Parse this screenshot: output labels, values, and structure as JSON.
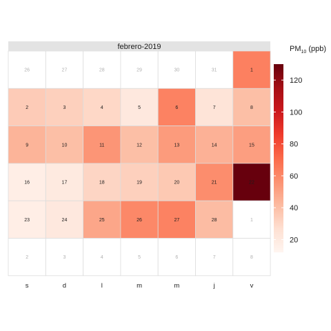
{
  "chart_data": {
    "type": "heatmap",
    "panel_title": "febrero-2019",
    "weekday_labels": [
      "s",
      "d",
      "l",
      "m",
      "m",
      "j",
      "v"
    ],
    "legend": {
      "title_main": "PM",
      "title_sub": "10",
      "title_unit": " (ppb)",
      "ticks": [
        20,
        40,
        60,
        80,
        100,
        120
      ],
      "min": 12,
      "max": 130,
      "colors": [
        "#fff5f0",
        "#fee0d2",
        "#fcbba1",
        "#fc9272",
        "#fb6a4a",
        "#ef3b2c",
        "#cb181d",
        "#a50f15",
        "#67000d"
      ]
    },
    "cells": [
      {
        "label": "26",
        "in_month": false,
        "value": null
      },
      {
        "label": "27",
        "in_month": false,
        "value": null
      },
      {
        "label": "28",
        "in_month": false,
        "value": null
      },
      {
        "label": "29",
        "in_month": false,
        "value": null
      },
      {
        "label": "30",
        "in_month": false,
        "value": null
      },
      {
        "label": "31",
        "in_month": false,
        "value": null
      },
      {
        "label": "1",
        "in_month": true,
        "value": 63
      },
      {
        "label": "2",
        "in_month": true,
        "value": 35
      },
      {
        "label": "3",
        "in_month": true,
        "value": 33
      },
      {
        "label": "4",
        "in_month": true,
        "value": 30
      },
      {
        "label": "5",
        "in_month": true,
        "value": 21
      },
      {
        "label": "6",
        "in_month": true,
        "value": 62
      },
      {
        "label": "7",
        "in_month": true,
        "value": 24
      },
      {
        "label": "8",
        "in_month": true,
        "value": 40
      },
      {
        "label": "9",
        "in_month": true,
        "value": 44
      },
      {
        "label": "10",
        "in_month": true,
        "value": 40
      },
      {
        "label": "11",
        "in_month": true,
        "value": 55
      },
      {
        "label": "12",
        "in_month": true,
        "value": 40
      },
      {
        "label": "13",
        "in_month": true,
        "value": 53
      },
      {
        "label": "14",
        "in_month": true,
        "value": 45
      },
      {
        "label": "15",
        "in_month": true,
        "value": 52
      },
      {
        "label": "16",
        "in_month": true,
        "value": 17
      },
      {
        "label": "17",
        "in_month": true,
        "value": 20
      },
      {
        "label": "18",
        "in_month": true,
        "value": 31
      },
      {
        "label": "19",
        "in_month": true,
        "value": 33
      },
      {
        "label": "20",
        "in_month": true,
        "value": 36
      },
      {
        "label": "21",
        "in_month": true,
        "value": 58
      },
      {
        "label": "22",
        "in_month": true,
        "value": 130
      },
      {
        "label": "23",
        "in_month": true,
        "value": 17
      },
      {
        "label": "24",
        "in_month": true,
        "value": 21
      },
      {
        "label": "25",
        "in_month": true,
        "value": 49
      },
      {
        "label": "26",
        "in_month": true,
        "value": 60
      },
      {
        "label": "27",
        "in_month": true,
        "value": 62
      },
      {
        "label": "28",
        "in_month": true,
        "value": 41
      },
      {
        "label": "1",
        "in_month": false,
        "value": null
      },
      {
        "label": "2",
        "in_month": false,
        "value": null
      },
      {
        "label": "3",
        "in_month": false,
        "value": null
      },
      {
        "label": "4",
        "in_month": false,
        "value": null
      },
      {
        "label": "5",
        "in_month": false,
        "value": null
      },
      {
        "label": "6",
        "in_month": false,
        "value": null
      },
      {
        "label": "7",
        "in_month": false,
        "value": null
      },
      {
        "label": "8",
        "in_month": false,
        "value": null
      }
    ]
  }
}
